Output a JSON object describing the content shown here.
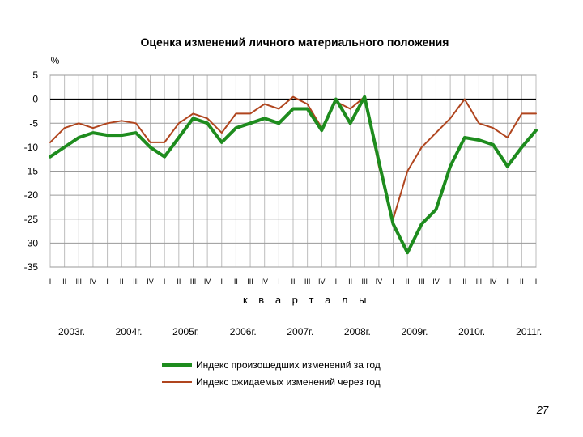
{
  "chart_data": {
    "type": "line",
    "title": "Оценка изменений личного материального положения",
    "ylabel": "%",
    "xlabel": "к в а р т а л ы",
    "ylim": [
      -35,
      5
    ],
    "yticks": [
      5,
      0,
      -5,
      -10,
      -15,
      -20,
      -25,
      -30,
      -35
    ],
    "grid": true,
    "legend_position": "bottom",
    "quarter_labels": [
      "I",
      "II",
      "III",
      "IV",
      "I",
      "II",
      "III",
      "IV",
      "I",
      "II",
      "III",
      "IV",
      "I",
      "II",
      "III",
      "IV",
      "I",
      "II",
      "III",
      "IV",
      "I",
      "II",
      "III",
      "IV",
      "I",
      "II",
      "III",
      "IV",
      "I",
      "II",
      "III",
      "IV",
      "I",
      "II",
      "III"
    ],
    "year_labels": [
      {
        "label": "2003г.",
        "start_quarter": 0
      },
      {
        "label": "2004г.",
        "start_quarter": 4
      },
      {
        "label": "2005г.",
        "start_quarter": 8
      },
      {
        "label": "2006г.",
        "start_quarter": 12
      },
      {
        "label": "2007г.",
        "start_quarter": 16
      },
      {
        "label": "2008г.",
        "start_quarter": 20
      },
      {
        "label": "2009г.",
        "start_quarter": 24
      },
      {
        "label": "2010г.",
        "start_quarter": 28
      },
      {
        "label": "2011г.",
        "start_quarter": 32
      }
    ],
    "series": [
      {
        "name": "Индекс произошедших изменений за год",
        "color": "#1e8c1e",
        "values": [
          -12,
          -10,
          -8,
          -7,
          -7.5,
          -7.5,
          -7,
          -10,
          -12,
          -8,
          -4,
          -5,
          -9,
          -6,
          -5,
          -4,
          -5,
          -2,
          -2,
          -6.5,
          0,
          -5,
          0.5,
          -13,
          -26,
          -32,
          -26,
          -23,
          -14,
          -8,
          -8.5,
          -9.5,
          -14,
          -10,
          -6.5
        ]
      },
      {
        "name": "Индекс ожидаемых изменений через год",
        "color": "#b0451e",
        "values": [
          -9,
          -6,
          -5,
          -6,
          -5,
          -4.5,
          -5,
          -9,
          -9,
          -5,
          -3,
          -4,
          -7,
          -3,
          -3,
          -1,
          -2,
          0.5,
          -1,
          -6,
          -0.5,
          -2,
          0.5,
          -14,
          -25,
          -15,
          -10,
          -7,
          -4,
          0,
          -5,
          -6,
          -8,
          -3,
          -3
        ]
      }
    ]
  },
  "page_number": "27"
}
